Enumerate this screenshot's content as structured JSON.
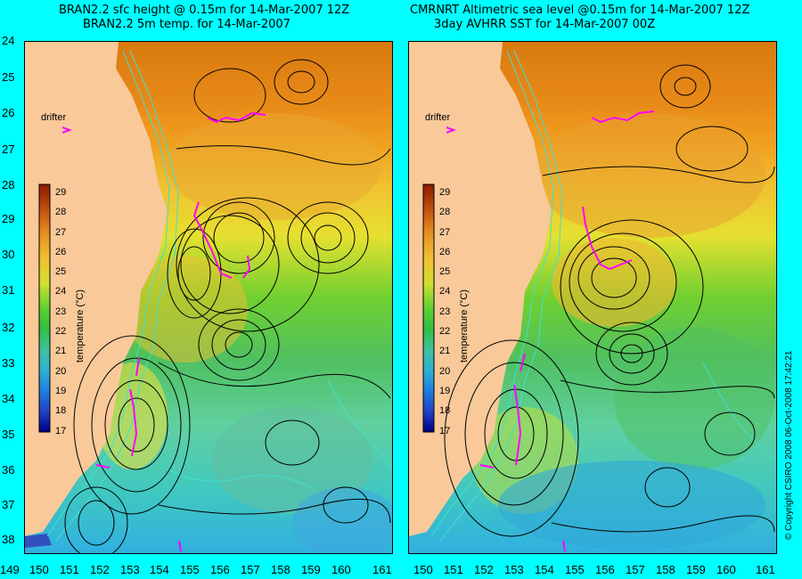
{
  "left_panel": {
    "title_line1": "BRAN2.2 sfc height @ 0.15m for 14-Mar-2007 12Z",
    "title_line2": "BRAN2.2 5m temp. for 14-Mar-2007"
  },
  "right_panel": {
    "title_line1": "CMRNRT Altimetric sea level  @0.15m  for 14-Mar-2007 12Z",
    "title_line2": "3day AVHRR SST for 14-Mar-2007 00Z"
  },
  "drifter_label": "drifter",
  "colorbar": {
    "label": "temperature (°C)",
    "ticks": [
      "29",
      "28",
      "27",
      "26",
      "25",
      "24",
      "23",
      "22",
      "21",
      "20",
      "19",
      "18",
      "17"
    ]
  },
  "lat_ticks": [
    "24",
    "25",
    "26",
    "27",
    "28",
    "29",
    "30",
    "31",
    "32",
    "33",
    "34",
    "35",
    "36",
    "37",
    "38"
  ],
  "lon_ticks": [
    "149",
    "150",
    "151",
    "152",
    "153",
    "154",
    "155",
    "156",
    "157",
    "158",
    "159",
    "160",
    "161"
  ],
  "copyright": "© Copyright CSIRO 2008    06-Oct-2008 17:42:21",
  "colors": {
    "background": "#00ffff",
    "land": "#f9c99a",
    "contour": "#000000",
    "bathymetry": "#40e0d0",
    "drifter": "#ff00ff"
  }
}
